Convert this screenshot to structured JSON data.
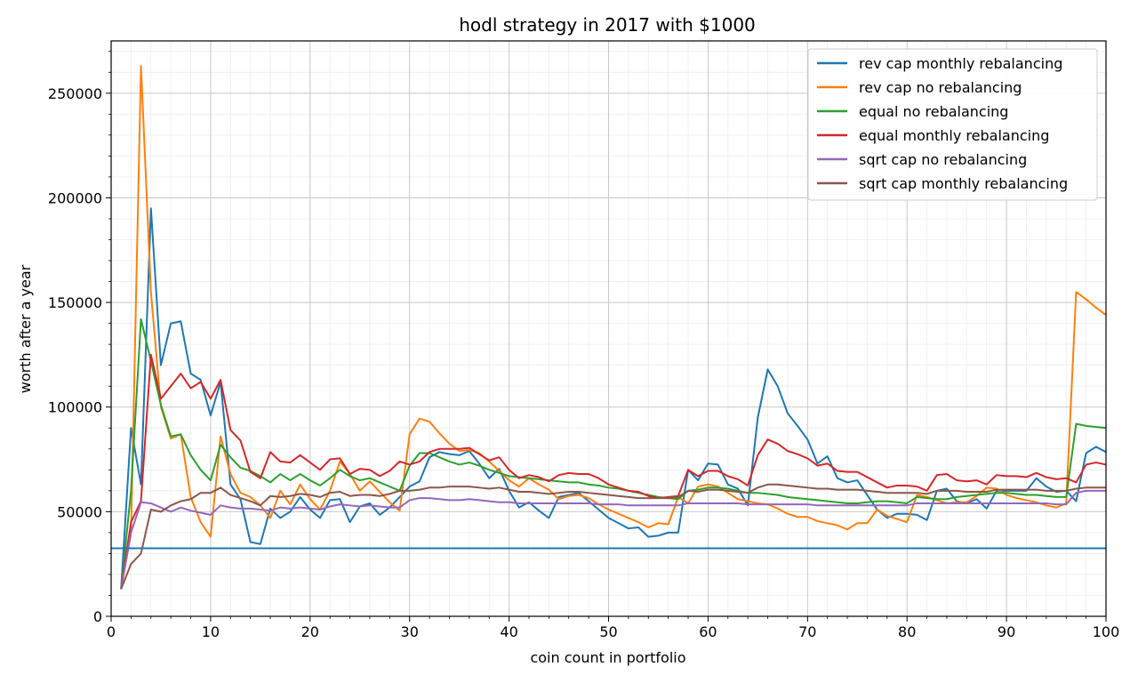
{
  "chart_data": {
    "type": "line",
    "title": "hodl strategy in 2017 with $1000",
    "xlabel": "coin count in portfolio",
    "ylabel": "worth after a year",
    "xlim": [
      0,
      100
    ],
    "ylim": [
      0,
      275000
    ],
    "xticks": [
      0,
      10,
      20,
      30,
      40,
      50,
      60,
      70,
      80,
      90,
      100
    ],
    "yticks": [
      0,
      50000,
      100000,
      150000,
      200000,
      250000
    ],
    "grid": true,
    "minor_grid": true,
    "legend_position": "top-right",
    "x_start": 1,
    "x_step": 1,
    "series": [
      {
        "name": "rev cap monthly rebalancing",
        "color": "#1f77b4",
        "values": [
          13000,
          90000,
          63000,
          195000,
          120000,
          140000,
          141000,
          116000,
          113000,
          96000,
          112000,
          63000,
          56000,
          35500,
          34500,
          51500,
          47000,
          50000,
          57000,
          51000,
          47000,
          55500,
          56000,
          45000,
          52500,
          54000,
          48500,
          52000,
          57000,
          62000,
          64500,
          76000,
          78500,
          77500,
          77000,
          79000,
          73000,
          66000,
          70500,
          60000,
          52000,
          54500,
          50500,
          47000,
          57000,
          58000,
          59000,
          55000,
          51000,
          47000,
          44500,
          42000,
          42500,
          38000,
          38500,
          40000,
          40000,
          70000,
          65000,
          73000,
          72500,
          63000,
          61000,
          53000,
          95000,
          118000,
          110000,
          97000,
          91000,
          84500,
          73000,
          76500,
          66000,
          64000,
          65000,
          58000,
          51000,
          47000,
          49000,
          49000,
          48500,
          46000,
          60000,
          61000,
          55000,
          54000,
          56000,
          51500,
          60000,
          60000,
          60000,
          60000,
          66000,
          62000,
          59500,
          60000,
          55000,
          78000,
          81000,
          78500
        ]
      },
      {
        "name": "rev cap no rebalancing",
        "color": "#ff7f0e",
        "values": [
          13000,
          40000,
          263000,
          155000,
          100000,
          85000,
          87000,
          57000,
          45000,
          38000,
          86000,
          68000,
          59000,
          57000,
          53000,
          47000,
          60000,
          53500,
          63000,
          56000,
          51000,
          60000,
          74000,
          68000,
          60000,
          64500,
          59500,
          54500,
          50500,
          87000,
          94500,
          93000,
          87500,
          82500,
          79000,
          79500,
          78000,
          74000,
          69500,
          65000,
          62000,
          66000,
          63000,
          60500,
          56000,
          57500,
          58000,
          56500,
          53500,
          51000,
          49000,
          47000,
          45000,
          42500,
          44500,
          44000,
          57000,
          54000,
          62000,
          63000,
          62000,
          59000,
          56000,
          55000,
          54000,
          53500,
          51500,
          49000,
          47500,
          47500,
          45500,
          44500,
          43500,
          41500,
          44500,
          44500,
          51000,
          48000,
          46500,
          45000,
          58000,
          57000,
          55500,
          54000,
          54500,
          54500,
          57500,
          61500,
          61000,
          58000,
          56500,
          55500,
          54500,
          53000,
          52000,
          54000,
          155000,
          151500,
          147500,
          144000
        ]
      },
      {
        "name": "equal no rebalancing",
        "color": "#2ca02c",
        "values": [
          13000,
          60000,
          142000,
          122000,
          101000,
          86000,
          87000,
          77000,
          70000,
          65000,
          82000,
          76000,
          71000,
          69500,
          67000,
          64000,
          68000,
          65000,
          68000,
          65000,
          62500,
          66000,
          70000,
          67000,
          65000,
          66000,
          64000,
          62000,
          60000,
          72000,
          78000,
          78000,
          76000,
          74000,
          72500,
          73500,
          72000,
          70000,
          68500,
          67000,
          66500,
          66000,
          65500,
          65000,
          64500,
          64000,
          64000,
          63000,
          62500,
          61500,
          61000,
          60000,
          59000,
          58000,
          57000,
          56500,
          56000,
          60000,
          60500,
          61500,
          61500,
          61000,
          60000,
          59000,
          59000,
          58500,
          58000,
          57000,
          56500,
          56000,
          55500,
          55000,
          54500,
          54000,
          54000,
          54500,
          55000,
          55000,
          54500,
          54000,
          57000,
          56500,
          56000,
          56000,
          57000,
          57500,
          58000,
          58500,
          59000,
          59000,
          58500,
          58000,
          58000,
          57500,
          57000,
          57000,
          92000,
          91000,
          90500,
          90000
        ]
      },
      {
        "name": "equal monthly rebalancing",
        "color": "#d62728",
        "values": [
          13000,
          45000,
          55000,
          125000,
          104000,
          110000,
          116000,
          109000,
          112000,
          104000,
          113000,
          89000,
          84000,
          69000,
          66000,
          78500,
          74000,
          73500,
          77000,
          73500,
          70000,
          75000,
          75500,
          68000,
          70500,
          70000,
          67000,
          69500,
          74000,
          72500,
          74000,
          78500,
          80000,
          80000,
          80000,
          80500,
          77500,
          74500,
          76000,
          70000,
          66000,
          67500,
          66500,
          64500,
          67500,
          68500,
          68000,
          68000,
          66000,
          63000,
          61500,
          60000,
          59500,
          57500,
          56500,
          57000,
          57500,
          70000,
          67000,
          69500,
          69500,
          67000,
          65500,
          62500,
          77000,
          84500,
          82500,
          79000,
          77500,
          75500,
          72000,
          73000,
          69500,
          69000,
          69000,
          66500,
          64000,
          61500,
          62500,
          62500,
          62000,
          60000,
          67500,
          68000,
          65000,
          64500,
          65000,
          63000,
          67500,
          67000,
          67000,
          66500,
          68500,
          66500,
          65500,
          66000,
          64000,
          72500,
          73500,
          72500
        ]
      },
      {
        "name": "sqrt cap no rebalancing",
        "color": "#9467bd",
        "values": [
          13000,
          40000,
          54500,
          54000,
          52000,
          50000,
          52000,
          50500,
          49500,
          48500,
          53000,
          52000,
          51500,
          51500,
          51000,
          50500,
          52000,
          51500,
          52000,
          51500,
          51000,
          52500,
          53500,
          53000,
          52500,
          53000,
          52500,
          52000,
          52000,
          55500,
          56500,
          56500,
          56000,
          55500,
          55500,
          56000,
          55500,
          55000,
          54500,
          54500,
          54000,
          54000,
          54000,
          54000,
          54000,
          54000,
          54000,
          54000,
          53500,
          53500,
          53500,
          53000,
          53000,
          53000,
          53000,
          53000,
          53000,
          54000,
          54000,
          54000,
          54000,
          54000,
          54000,
          53500,
          53500,
          53500,
          53500,
          53500,
          53500,
          53500,
          53000,
          53000,
          53000,
          53000,
          53000,
          53000,
          53000,
          53000,
          53000,
          53000,
          54000,
          54000,
          54000,
          54000,
          54000,
          54000,
          54000,
          54000,
          54000,
          54000,
          54000,
          54000,
          54000,
          54000,
          53500,
          53500,
          59000,
          60000,
          60000,
          60000
        ]
      },
      {
        "name": "sqrt cap monthly rebalancing",
        "color": "#8c564b",
        "values": [
          13000,
          25000,
          30000,
          51000,
          50000,
          53000,
          55000,
          56000,
          59000,
          59000,
          61500,
          58000,
          56500,
          55000,
          53000,
          57500,
          57000,
          57500,
          58500,
          58000,
          57000,
          59000,
          59500,
          57500,
          58000,
          58000,
          57500,
          58500,
          60000,
          60000,
          60500,
          61500,
          61500,
          62000,
          62000,
          62000,
          61500,
          61000,
          61500,
          60500,
          59500,
          59500,
          59000,
          58500,
          59000,
          59500,
          59500,
          59000,
          58500,
          58000,
          57500,
          57000,
          56500,
          56500,
          56500,
          56500,
          57000,
          60000,
          59500,
          60500,
          60500,
          60000,
          59500,
          59000,
          61500,
          63000,
          63000,
          62500,
          62000,
          61500,
          61000,
          61000,
          60500,
          60500,
          60500,
          60000,
          59500,
          59000,
          59000,
          59000,
          59000,
          58500,
          60000,
          60000,
          60000,
          59500,
          59500,
          59500,
          60500,
          60500,
          60500,
          60500,
          60500,
          60000,
          60000,
          60000,
          61000,
          61500,
          61500,
          61500
        ]
      },
      {
        "name": "",
        "color": "#1f77b4",
        "constant": 32500
      }
    ]
  }
}
